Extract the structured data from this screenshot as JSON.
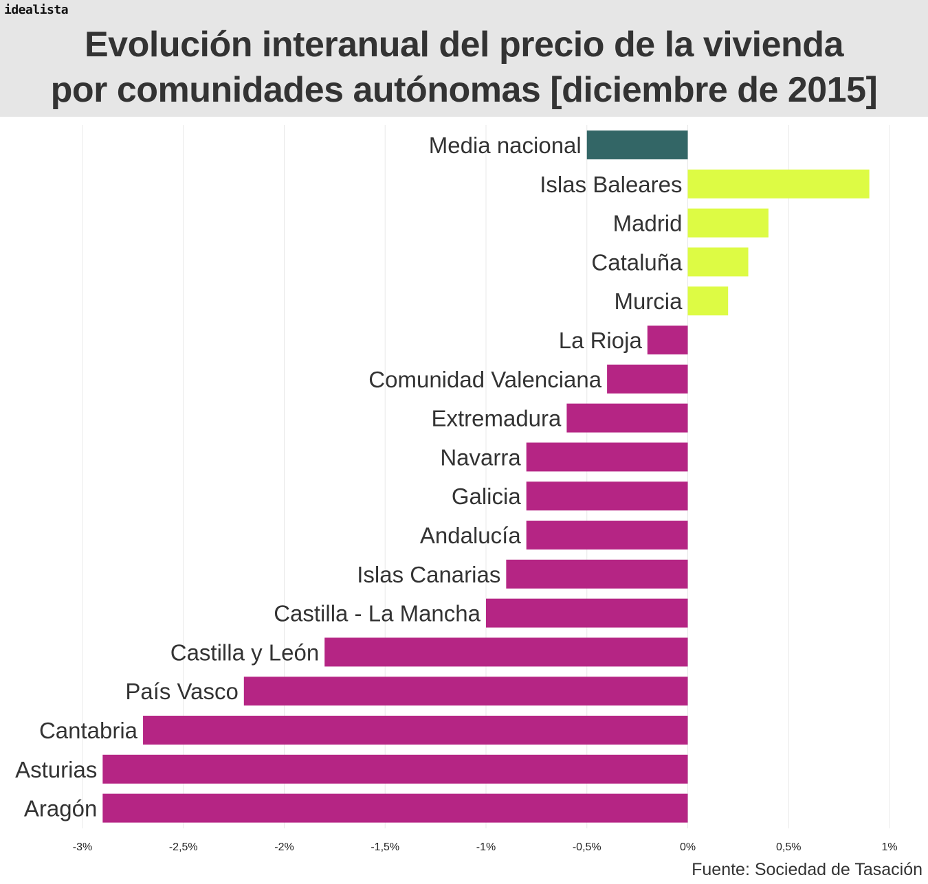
{
  "brand": "idealista",
  "title_line1": "Evolución interanual del precio de la vivienda",
  "title_line2": "por comunidades autónomas [diciembre de 2015]",
  "source": "Fuente: Sociedad de Tasación",
  "colors": {
    "national": "#336666",
    "positive": "#ddfb44",
    "negative": "#b52584",
    "grid": "#e8e8e8",
    "text": "#333333",
    "header_bg": "#e6e6e6"
  },
  "chart_data": {
    "type": "bar",
    "orientation": "horizontal",
    "title": "Evolución interanual del precio de la vivienda por comunidades autónomas [diciembre de 2015]",
    "categories": [
      "Media nacional",
      "Islas Baleares",
      "Madrid",
      "Cataluña",
      "Murcia",
      "La Rioja",
      "Comunidad Valenciana",
      "Extremadura",
      "Navarra",
      "Galicia",
      "Andalucía",
      "Islas Canarias",
      "Castilla - La Mancha",
      "Castilla y León",
      "País Vasco",
      "Cantabria",
      "Asturias",
      "Aragón"
    ],
    "values": [
      -0.5,
      0.9,
      0.4,
      0.3,
      0.2,
      -0.2,
      -0.4,
      -0.6,
      -0.8,
      -0.8,
      -0.8,
      -0.9,
      -1.0,
      -1.8,
      -2.2,
      -2.7,
      -2.9,
      -2.9
    ],
    "unit": "%",
    "xlim": [
      -3,
      1
    ],
    "xticks": [
      -3,
      -2.5,
      -2,
      -1.5,
      -1,
      -0.5,
      0,
      0.5,
      1
    ],
    "xtick_labels": [
      "-3%",
      "-2,5%",
      "-2%",
      "-1,5%",
      "-1%",
      "-0,5%",
      "0%",
      "0,5%",
      "1%"
    ],
    "grid": true
  }
}
